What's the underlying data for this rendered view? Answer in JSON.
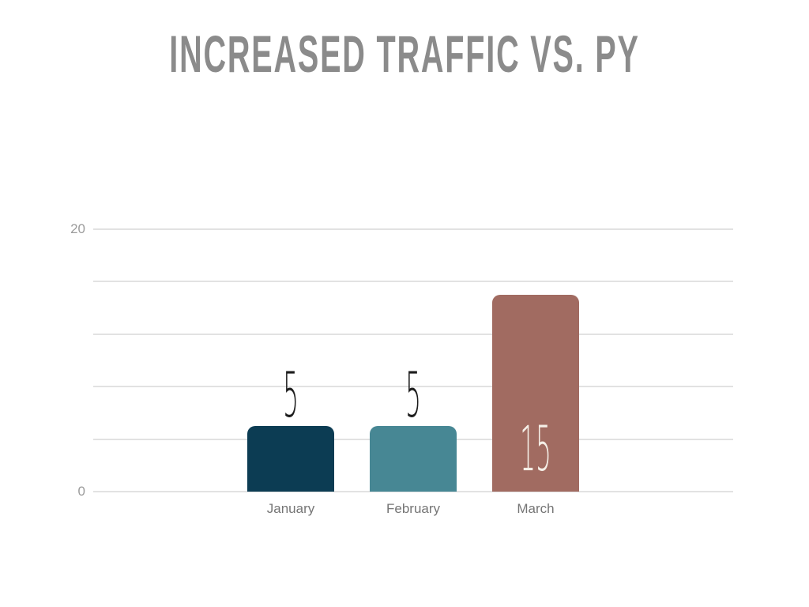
{
  "chart_data": {
    "type": "bar",
    "title": "INCREASED TRAFFIC VS. PY",
    "title_color": "#8b8b8b",
    "categories": [
      "January",
      "February",
      "March"
    ],
    "values": [
      5,
      5,
      15
    ],
    "bar_colors": [
      "#0c3c53",
      "#478794",
      "#a16b61"
    ],
    "value_labels": [
      {
        "text": "5",
        "position": "above",
        "color": "#1c1c1c"
      },
      {
        "text": "5",
        "position": "above",
        "color": "#1c1c1c"
      },
      {
        "text": "15",
        "position": "inside",
        "color": "#f5efe7"
      }
    ],
    "xlabel": "",
    "ylabel": "",
    "ylim": [
      0,
      20
    ],
    "gridline_step": 4,
    "labeled_ticks": [
      20,
      0
    ],
    "grid": "on",
    "legend": "none",
    "grid_color": "#e2e2e2",
    "axis_label_color": "#9b9b9b",
    "category_label_color": "#757575",
    "background_color": "#ffffff"
  }
}
